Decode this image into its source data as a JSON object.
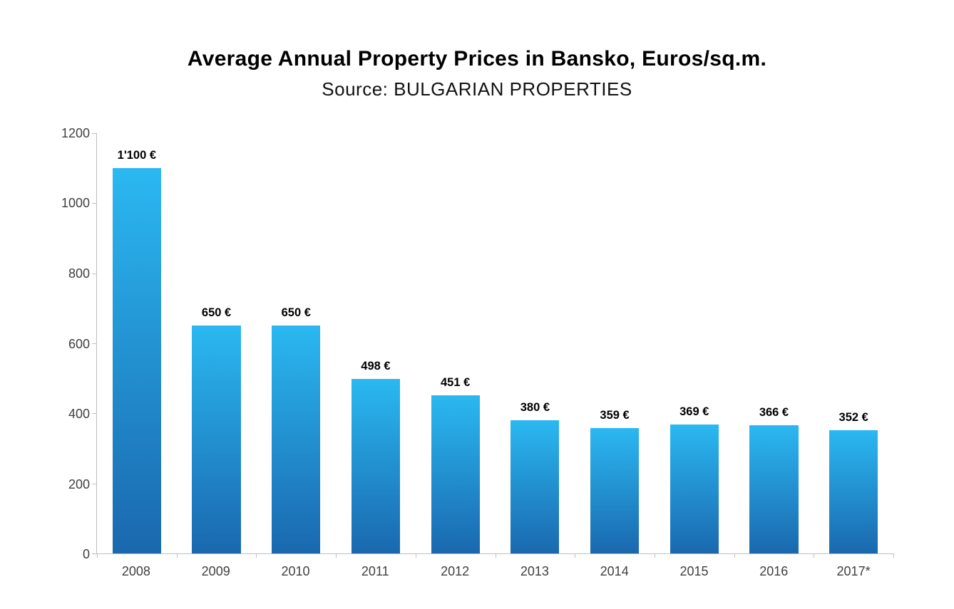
{
  "chart_data": {
    "type": "bar",
    "title": "Average Annual Property Prices in Bansko, Euros/sq.m.",
    "subtitle": "Source: BULGARIAN PROPERTIES",
    "categories": [
      "2008",
      "2009",
      "2010",
      "2011",
      "2012",
      "2013",
      "2014",
      "2015",
      "2016",
      "2017*"
    ],
    "values": [
      1100,
      650,
      650,
      498,
      451,
      380,
      359,
      369,
      366,
      352
    ],
    "value_labels": [
      "1'100 €",
      "650 €",
      "650 €",
      "498 €",
      "451 €",
      "380 €",
      "359 €",
      "369 €",
      "366 €",
      "352 €"
    ],
    "xlabel": "",
    "ylabel": "",
    "ylim": [
      0,
      1200
    ],
    "yticks": [
      0,
      200,
      400,
      600,
      800,
      1000,
      1200
    ],
    "grid": false,
    "legend": false,
    "bar_color_top": "#2bb8f1",
    "bar_color_bottom": "#1a68ae",
    "axis_color": "#bfbfbf"
  }
}
